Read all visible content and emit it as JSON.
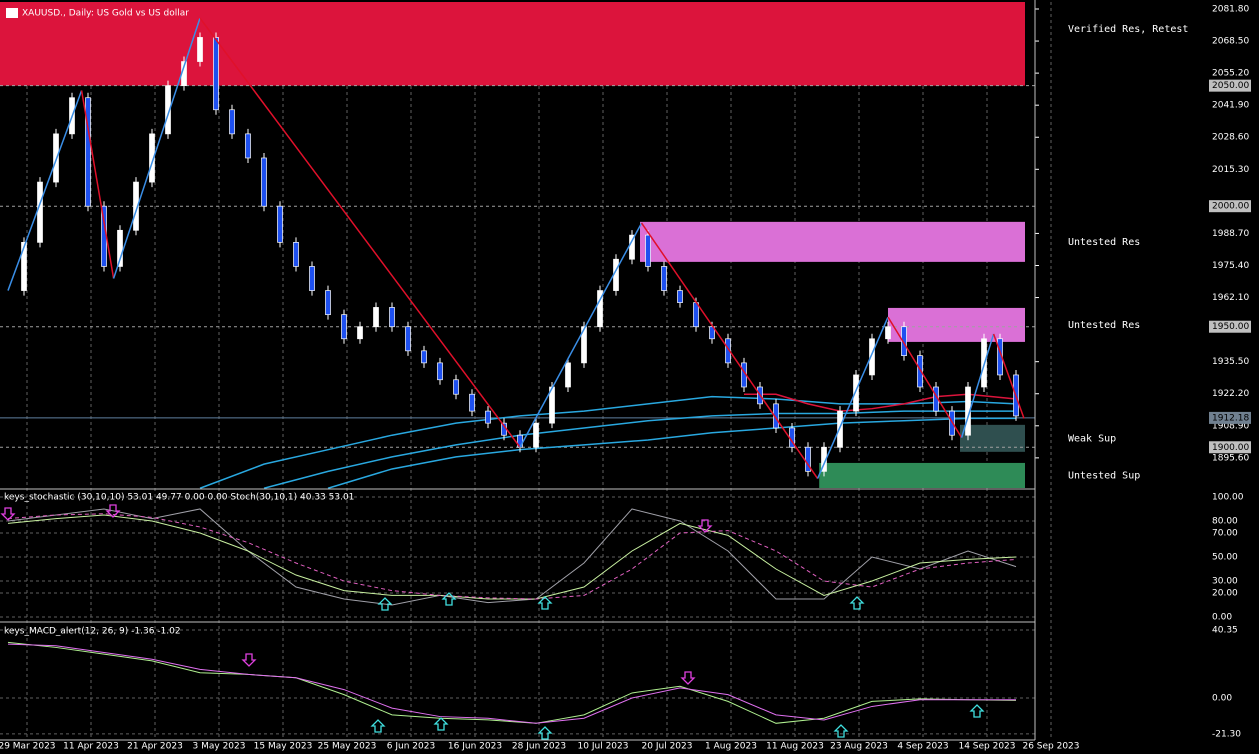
{
  "window": {
    "title": "XAUUSD., Daily:  US Gold vs US dollar"
  },
  "main": {
    "ylim": [
      1883.1,
      2084.7
    ],
    "yticks": [
      {
        "value": 2081.8,
        "label": "2081.80"
      },
      {
        "value": 2068.5,
        "label": "2068.50"
      },
      {
        "value": 2055.2,
        "label": "2055.20"
      },
      {
        "value": 2041.9,
        "label": "2041.90"
      },
      {
        "value": 2028.6,
        "label": "2028.60"
      },
      {
        "value": 2015.3,
        "label": "2015.30"
      },
      {
        "value": 1988.7,
        "label": "1988.70"
      },
      {
        "value": 1975.4,
        "label": "1975.40"
      },
      {
        "value": 1962.1,
        "label": "1962.10"
      },
      {
        "value": 1935.5,
        "label": "1935.50"
      },
      {
        "value": 1922.2,
        "label": "1922.20"
      },
      {
        "value": 1908.9,
        "label": "1908.90"
      },
      {
        "value": 1895.6,
        "label": "1895.60"
      }
    ],
    "levels": [
      {
        "value": 2050,
        "label": "2050.00"
      },
      {
        "value": 2000,
        "label": "2000.00"
      },
      {
        "value": 1950,
        "label": "1950.00"
      },
      {
        "value": 1912.18,
        "label": "1912.18"
      },
      {
        "value": 1900,
        "label": "1900.00"
      }
    ],
    "zones": [
      {
        "label": "Verified Res, Retest",
        "low": 2050,
        "high": 2084.7,
        "start": -0.5,
        "color": "#dc143c"
      },
      {
        "label": "Untested Res",
        "low": 1976.9,
        "high": 1993.5,
        "start": 39.5,
        "color": "#da70d6"
      },
      {
        "label": "Untested Res",
        "low": 1943.7,
        "high": 1957.8,
        "start": 55,
        "color": "#da70d6"
      },
      {
        "label": "Weak Sup",
        "low": 1898.1,
        "high": 1909.3,
        "start": 59.5,
        "color": "#2f4f4f"
      },
      {
        "label": "Untested Sup",
        "low": 1883.1,
        "high": 1893.5,
        "start": 50.7,
        "color": "#2e8b57"
      }
    ],
    "candles": [
      1965,
      1985,
      2010,
      2030,
      2045,
      2000,
      1975,
      1990,
      2010,
      2030,
      2050,
      2060,
      2070,
      2040,
      2030,
      2020,
      2000,
      1985,
      1975,
      1965,
      1955,
      1945,
      1950,
      1958,
      1950,
      1940,
      1935,
      1928,
      1922,
      1915,
      1910,
      1905,
      1900,
      1910,
      1925,
      1935,
      1950,
      1965,
      1978,
      1988,
      1975,
      1965,
      1960,
      1950,
      1945,
      1935,
      1925,
      1918,
      1908,
      1900,
      1890,
      1900,
      1915,
      1930,
      1945,
      1950,
      1938,
      1925,
      1915,
      1905,
      1925,
      1945,
      1930,
      1913
    ],
    "zigzag": {
      "x": [
        0,
        4.6,
        6.6,
        12,
        32,
        39.6,
        50.6,
        55,
        59.6,
        61.6,
        63.5
      ],
      "values": [
        1965,
        2048,
        1970,
        2078,
        1900,
        1993,
        1887,
        1954,
        1904,
        1947,
        1912
      ]
    },
    "averages": [
      {
        "color": "#29a8e0",
        "x": [
          12,
          16,
          20,
          24,
          28,
          32,
          36,
          40,
          44,
          48,
          52,
          56,
          60,
          63
        ],
        "values": [
          1883,
          1893,
          1899,
          1905,
          1910,
          1913,
          1915,
          1918,
          1921,
          1920,
          1918,
          1918,
          1919,
          1918
        ]
      },
      {
        "color": "#29a8e0",
        "x": [
          16,
          20,
          24,
          28,
          32,
          36,
          40,
          44,
          48,
          52,
          56,
          60,
          63
        ],
        "values": [
          1883,
          1890,
          1896,
          1901,
          1905,
          1908,
          1911,
          1913,
          1914,
          1914,
          1915,
          1915,
          1915
        ]
      },
      {
        "color": "#29a8e0",
        "x": [
          20,
          24,
          28,
          32,
          36,
          40,
          44,
          48,
          52,
          56,
          60,
          63
        ],
        "values": [
          1883,
          1891,
          1896,
          1899,
          1901,
          1903,
          1906,
          1908,
          1910,
          1911,
          1912,
          1912
        ]
      },
      {
        "color": "#dc143c",
        "x": [
          46,
          48,
          50,
          52,
          54,
          56,
          58,
          60,
          63
        ],
        "values": [
          1922,
          1922,
          1918,
          1915,
          1916,
          1918,
          1921,
          1922,
          1920
        ]
      }
    ]
  },
  "stoch": {
    "title": "keys_stochastic (30,10,10) 53.01 49.77 0.00 0.00 Stoch(30,10,1) 40.33 53.01",
    "ylim": [
      -3.3,
      105.8
    ],
    "yticks": [
      {
        "value": 100,
        "label": "100.00"
      },
      {
        "value": 80,
        "label": "80.00"
      },
      {
        "value": 70,
        "label": "70.00"
      },
      {
        "value": 50,
        "label": "50.00"
      },
      {
        "value": 30,
        "label": "30.00"
      },
      {
        "value": 20,
        "label": "20.00"
      },
      {
        "value": 0,
        "label": "0.00"
      }
    ],
    "x": [
      0,
      3,
      6,
      9,
      12,
      15,
      18,
      21,
      24,
      27,
      30,
      33,
      36,
      39,
      42,
      45,
      48,
      51,
      54,
      57,
      60,
      63
    ],
    "series": [
      {
        "color": "#a0a0a8",
        "dash": false,
        "values": [
          80,
          85,
          90,
          82,
          90,
          55,
          25,
          15,
          10,
          18,
          12,
          15,
          45,
          90,
          80,
          55,
          15,
          15,
          50,
          40,
          55,
          42
        ]
      },
      {
        "color": "#c8f0a0",
        "dash": false,
        "values": [
          78,
          82,
          85,
          80,
          70,
          55,
          35,
          22,
          18,
          18,
          15,
          15,
          25,
          55,
          78,
          68,
          40,
          18,
          30,
          45,
          48,
          50
        ]
      },
      {
        "color": "#e060c0",
        "dash": true,
        "values": [
          82,
          85,
          86,
          83,
          75,
          62,
          45,
          30,
          22,
          18,
          16,
          15,
          18,
          40,
          70,
          72,
          55,
          30,
          25,
          40,
          45,
          48
        ]
      }
    ]
  },
  "macd": {
    "title": "keys_MACD_alert(12, 26, 9) -1.36 -1.02",
    "ylim": [
      -24.9,
      43.9
    ],
    "yticks": [
      {
        "value": 40.35,
        "label": "40.35"
      },
      {
        "value": 0,
        "label": "0.00"
      },
      {
        "value": -21.3,
        "label": "-21.30"
      }
    ],
    "x": [
      0,
      3,
      6,
      9,
      12,
      15,
      18,
      21,
      24,
      27,
      30,
      33,
      36,
      39,
      42,
      45,
      48,
      51,
      54,
      57,
      60,
      63
    ],
    "series": [
      {
        "color": "#b0f090",
        "values": [
          33,
          30,
          26,
          22,
          15,
          14,
          12,
          2,
          -10,
          -12,
          -13,
          -15,
          -10,
          3,
          7,
          -2,
          -15,
          -12,
          -2,
          -0.5,
          -1,
          -1.4
        ]
      },
      {
        "color": "#e070f0",
        "values": [
          32,
          31,
          27,
          23,
          17,
          14,
          12,
          5,
          -6,
          -11,
          -12,
          -15,
          -12,
          0,
          6,
          2,
          -10,
          -13,
          -5,
          -1,
          -1,
          -1.0
        ]
      }
    ]
  },
  "dates": [
    "29 Mar 2023",
    "11 Apr 2023",
    "21 Apr 2023",
    "3 May 2023",
    "15 May 2023",
    "25 May 2023",
    "6 Jun 2023",
    "16 Jun 2023",
    "28 Jun 2023",
    "10 Jul 2023",
    "20 Jul 2023",
    "1 Aug 2023",
    "11 Aug 2023",
    "23 Aug 2023",
    "4 Sep 2023",
    "14 Sep 2023",
    "26 Sep 2023"
  ]
}
